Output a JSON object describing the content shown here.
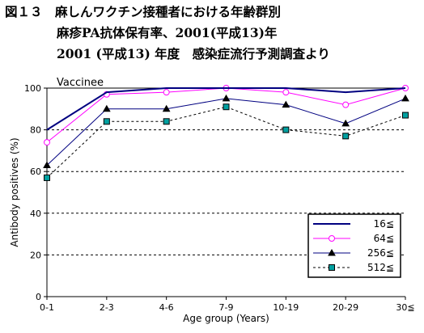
{
  "header": {
    "line1": "図１３　麻しんワクチン接種者における年齢群別",
    "line2": "麻疹PA抗体保有率、2001(平成13)年",
    "line3": "2001 (平成13) 年度　感染症流行予測調査より"
  },
  "chart_data": {
    "type": "line",
    "panel_label": "Vaccinee",
    "categories": [
      "0-1",
      "2-3",
      "4-6",
      "7-9",
      "10-19",
      "20-29",
      "30≦"
    ],
    "xlabel": "Age group (Years)",
    "ylabel": "Antibody positives (%)",
    "ylim": [
      0,
      100
    ],
    "yticks": [
      "0",
      "20",
      "40",
      "60",
      "80",
      "100"
    ],
    "grid": "dashed horizontal at 20, 40, 60, 80",
    "legend_position": "lower-right",
    "series": [
      {
        "name": "16≦",
        "color": "#000080",
        "marker": "none",
        "dash": "solid",
        "values": [
          80,
          98,
          100,
          100,
          100,
          98,
          100
        ]
      },
      {
        "name": "64≦",
        "color": "#ff00ff",
        "marker": "circle",
        "dash": "solid",
        "values": [
          74,
          97,
          98,
          100,
          98,
          92,
          100
        ]
      },
      {
        "name": "256≦",
        "color": "#000080",
        "marker": "triangle",
        "dash": "solid",
        "values": [
          63,
          90,
          90,
          95,
          92,
          83,
          95
        ]
      },
      {
        "name": "512≦",
        "color": "#000000",
        "marker": "square",
        "marker_fill": "#00a0a0",
        "dash": "dashed",
        "values": [
          57,
          84,
          84,
          91,
          80,
          77,
          87
        ]
      }
    ]
  }
}
